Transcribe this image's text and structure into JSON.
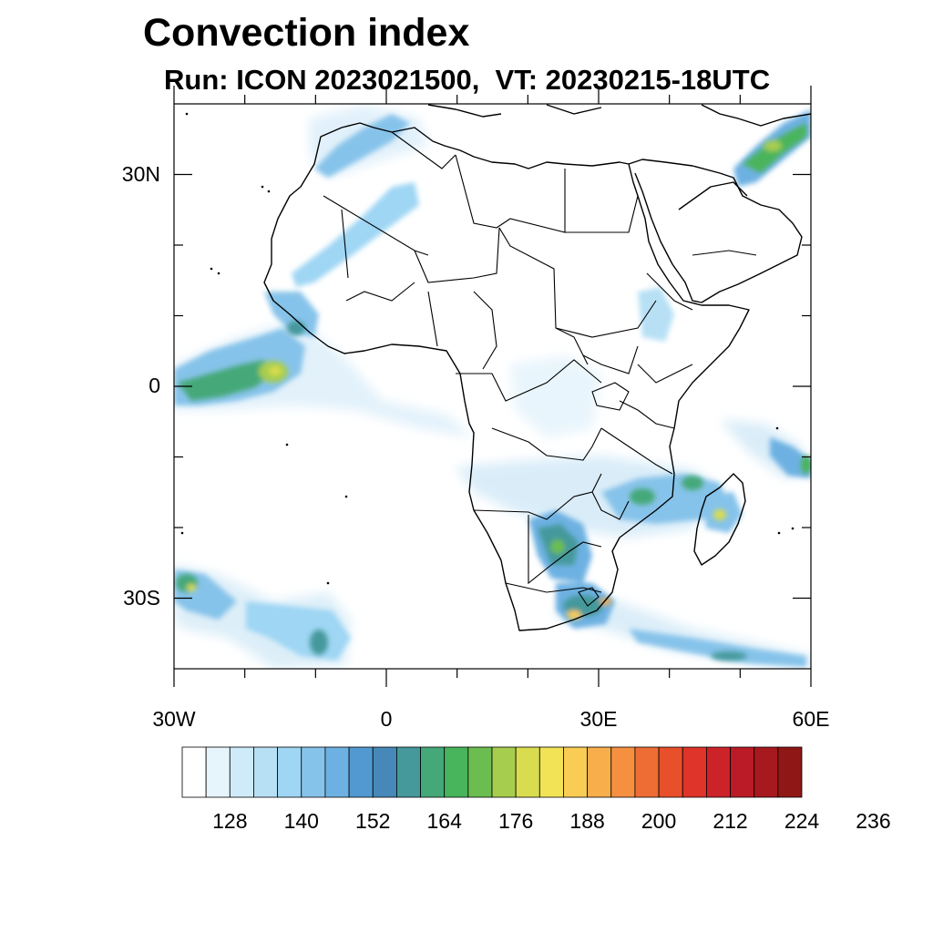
{
  "title": "Convection index",
  "subtitle": "Run: ICON 2023021500,  VT: 20230215-18UTC",
  "map": {
    "extent": {
      "lon_min": -30,
      "lon_max": 60,
      "lat_min": -40,
      "lat_max": 40
    },
    "lat_ticks": [
      {
        "lat": 30,
        "label": "30N"
      },
      {
        "lat": 0,
        "label": "0"
      },
      {
        "lat": -30,
        "label": "30S"
      }
    ],
    "lon_ticks": [
      {
        "lon": -30,
        "label": "30W"
      },
      {
        "lon": 0,
        "label": "0"
      },
      {
        "lon": 30,
        "label": "30E"
      },
      {
        "lon": 60,
        "label": "60E"
      }
    ]
  },
  "colorbar": {
    "colors": [
      "#ffffff",
      "#e6f4fc",
      "#cfeaf8",
      "#b7e0f5",
      "#9fd6f4",
      "#86c3ea",
      "#6db1e2",
      "#5399d1",
      "#4689b9",
      "#45999b",
      "#45a878",
      "#48b45c",
      "#6cbd50",
      "#a7cd4f",
      "#d9dc4e",
      "#f2e356",
      "#f9cc53",
      "#f8ae4a",
      "#f59040",
      "#ee6d34",
      "#e7502b",
      "#df3429",
      "#cc2329",
      "#bb1b27",
      "#a6191f",
      "#8f1816"
    ],
    "labels": [
      "128",
      "140",
      "152",
      "164",
      "176",
      "188",
      "200",
      "212",
      "224",
      "236"
    ]
  }
}
